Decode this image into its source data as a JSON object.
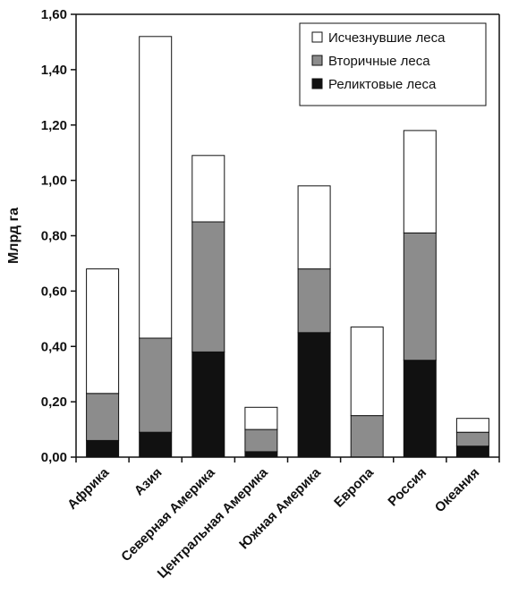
{
  "chart_data": {
    "type": "bar",
    "stacked": true,
    "ylabel": "Млрд га",
    "xlabel": "",
    "ylim": [
      0,
      1.6
    ],
    "y_ticks": [
      "0,00",
      "0,20",
      "0,40",
      "0,60",
      "0,80",
      "1,00",
      "1,20",
      "1,40",
      "1,60"
    ],
    "grid": false,
    "legend_position": "top-right",
    "categories": [
      "Африка",
      "Азия",
      "Северная Америка",
      "Центральная Америка",
      "Южная Америка",
      "Европа",
      "Россия",
      "Океания"
    ],
    "series": [
      {
        "name": "Реликтовые леса",
        "color": "#111111",
        "values": [
          0.06,
          0.09,
          0.38,
          0.02,
          0.45,
          0.0,
          0.35,
          0.04
        ]
      },
      {
        "name": "Вторичные леса",
        "color": "#8c8c8c",
        "values": [
          0.17,
          0.34,
          0.47,
          0.08,
          0.23,
          0.15,
          0.46,
          0.05
        ]
      },
      {
        "name": "Исчезнувшие леса",
        "color": "#ffffff",
        "values": [
          0.45,
          1.09,
          0.24,
          0.08,
          0.3,
          0.32,
          0.37,
          0.05
        ]
      }
    ]
  }
}
